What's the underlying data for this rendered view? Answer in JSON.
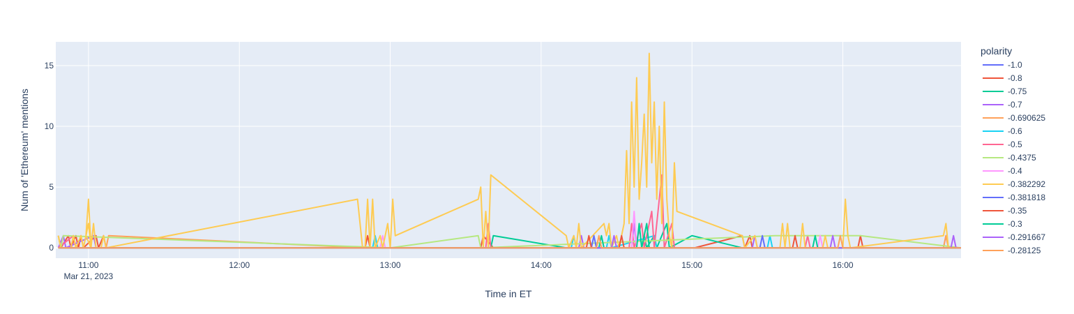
{
  "chart_data": {
    "type": "line",
    "title": "",
    "xlabel": "Time in ET",
    "ylabel": "Num of 'Ethereum' mentions",
    "date_label": "Mar 21, 2023",
    "xlim": [
      "10:47",
      "16:47"
    ],
    "ylim": [
      -0.85,
      16.95
    ],
    "x_ticks": [
      "11:00",
      "12:00",
      "13:00",
      "14:00",
      "15:00",
      "16:00"
    ],
    "y_ticks": [
      0,
      5,
      10,
      15
    ],
    "grid": true,
    "legend_title": "polarity",
    "legend_position": "right",
    "colors": {
      "plot_bg": "#e5ecf6",
      "grid": "#ffffff",
      "text": "#2a3f5f"
    },
    "series": [
      {
        "name": "-1.0",
        "color": "#636efa",
        "points": [
          [
            "10:48",
            0
          ],
          [
            "16:47",
            0
          ]
        ]
      },
      {
        "name": "-0.8",
        "color": "#ef553b",
        "points": [
          [
            "10:48",
            1
          ],
          [
            "10:49",
            0
          ],
          [
            "10:52",
            1
          ],
          [
            "10:53",
            0
          ],
          [
            "10:55",
            1
          ],
          [
            "10:56",
            0
          ],
          [
            "10:57",
            1
          ],
          [
            "10:58",
            0
          ],
          [
            "11:03",
            1
          ],
          [
            "11:04",
            0
          ],
          [
            "11:06",
            1
          ],
          [
            "11:07",
            0
          ],
          [
            "12:50",
            0
          ],
          [
            "12:51",
            1
          ],
          [
            "12:52",
            0
          ],
          [
            "13:36",
            0
          ],
          [
            "13:37",
            1
          ],
          [
            "13:41",
            0
          ],
          [
            "15:01",
            0
          ],
          [
            "15:20",
            1
          ],
          [
            "15:21",
            0
          ],
          [
            "15:23",
            1
          ],
          [
            "15:24",
            0
          ],
          [
            "16:06",
            0
          ],
          [
            "16:07",
            1
          ],
          [
            "16:08",
            0
          ],
          [
            "16:47",
            0
          ]
        ]
      },
      {
        "name": "-0.75",
        "color": "#00cc96",
        "points": [
          [
            "10:48",
            0
          ],
          [
            "13:40",
            0
          ],
          [
            "13:41",
            1
          ],
          [
            "14:10",
            0
          ],
          [
            "14:40",
            0
          ],
          [
            "14:41",
            1
          ],
          [
            "14:42",
            0
          ],
          [
            "14:45",
            1
          ],
          [
            "14:46",
            0
          ],
          [
            "14:50",
            2
          ],
          [
            "14:51",
            0
          ],
          [
            "15:00",
            1
          ],
          [
            "15:20",
            0
          ],
          [
            "16:47",
            0
          ]
        ]
      },
      {
        "name": "-0.7",
        "color": "#ab63fa",
        "points": [
          [
            "10:48",
            0
          ],
          [
            "10:50",
            1
          ],
          [
            "10:51",
            0
          ],
          [
            "11:02",
            1
          ],
          [
            "11:03",
            0
          ],
          [
            "14:15",
            0
          ],
          [
            "14:16",
            1
          ],
          [
            "14:17",
            0
          ],
          [
            "14:36",
            0
          ],
          [
            "14:37",
            2
          ],
          [
            "14:38",
            0
          ],
          [
            "15:24",
            0
          ],
          [
            "15:25",
            1
          ],
          [
            "15:26",
            0
          ],
          [
            "16:40",
            0
          ],
          [
            "16:41",
            1
          ],
          [
            "16:42",
            0
          ],
          [
            "16:47",
            0
          ]
        ]
      },
      {
        "name": "-0.690625",
        "color": "#ffa15a",
        "points": [
          [
            "10:48",
            0
          ],
          [
            "11:07",
            0
          ],
          [
            "11:08",
            1
          ],
          [
            "12:50",
            0
          ],
          [
            "16:40",
            0
          ],
          [
            "16:41",
            1
          ],
          [
            "16:42",
            0
          ],
          [
            "16:47",
            0
          ]
        ]
      },
      {
        "name": "-0.6",
        "color": "#19d3f3",
        "points": [
          [
            "10:48",
            0
          ],
          [
            "12:53",
            0
          ],
          [
            "12:54",
            1
          ],
          [
            "12:55",
            0
          ],
          [
            "14:12",
            0
          ],
          [
            "14:13",
            1
          ],
          [
            "14:14",
            0
          ],
          [
            "14:26",
            0
          ],
          [
            "14:27",
            1
          ],
          [
            "14:28",
            0
          ],
          [
            "14:45",
            1
          ],
          [
            "14:46",
            0
          ],
          [
            "15:30",
            0
          ],
          [
            "15:31",
            1
          ],
          [
            "15:32",
            0
          ],
          [
            "16:47",
            0
          ]
        ]
      },
      {
        "name": "-0.5",
        "color": "#ff6692",
        "points": [
          [
            "10:48",
            0
          ],
          [
            "10:54",
            1
          ],
          [
            "10:55",
            0
          ],
          [
            "13:38",
            0
          ],
          [
            "13:39",
            2
          ],
          [
            "13:40",
            0
          ],
          [
            "14:35",
            0
          ],
          [
            "14:36",
            2
          ],
          [
            "14:37",
            0
          ],
          [
            "14:40",
            2
          ],
          [
            "14:41",
            0
          ],
          [
            "14:44",
            3
          ],
          [
            "14:45",
            0
          ],
          [
            "14:48",
            6
          ],
          [
            "14:49",
            0
          ],
          [
            "14:52",
            2
          ],
          [
            "14:53",
            0
          ],
          [
            "15:45",
            0
          ],
          [
            "15:46",
            1
          ],
          [
            "15:47",
            0
          ],
          [
            "16:47",
            0
          ]
        ]
      },
      {
        "name": "-0.4375",
        "color": "#b6e880",
        "points": [
          [
            "10:48",
            1
          ],
          [
            "10:49",
            0
          ],
          [
            "10:50",
            1
          ],
          [
            "13:00",
            0
          ],
          [
            "13:35",
            1
          ],
          [
            "13:36",
            0
          ],
          [
            "15:33",
            1
          ],
          [
            "16:07",
            1
          ],
          [
            "16:47",
            0
          ]
        ]
      },
      {
        "name": "-0.4",
        "color": "#ff97ff",
        "points": [
          [
            "10:48",
            0
          ],
          [
            "12:56",
            0
          ],
          [
            "12:57",
            1
          ],
          [
            "12:58",
            0
          ],
          [
            "14:36",
            0
          ],
          [
            "14:37",
            3
          ],
          [
            "14:38",
            0
          ],
          [
            "15:50",
            0
          ],
          [
            "15:51",
            1
          ],
          [
            "15:52",
            0
          ],
          [
            "16:47",
            0
          ]
        ]
      },
      {
        "name": "-0.382292",
        "color": "#fecb52",
        "points": [
          [
            "10:48",
            1
          ],
          [
            "10:49",
            0
          ],
          [
            "10:53",
            0
          ],
          [
            "10:54",
            1
          ],
          [
            "10:55",
            0
          ],
          [
            "10:57",
            1
          ],
          [
            "10:58",
            0
          ],
          [
            "11:00",
            2
          ],
          [
            "11:01",
            0
          ],
          [
            "10:59",
            1
          ],
          [
            "11:00",
            4
          ],
          [
            "11:01",
            0
          ],
          [
            "11:02",
            2
          ],
          [
            "11:03",
            0
          ],
          [
            "11:05",
            0
          ],
          [
            "11:06",
            1
          ],
          [
            "11:07",
            0
          ],
          [
            "12:47",
            4
          ],
          [
            "12:49",
            0
          ],
          [
            "12:50",
            0
          ],
          [
            "12:51",
            4
          ],
          [
            "12:52",
            0
          ],
          [
            "12:53",
            4
          ],
          [
            "12:54",
            0
          ],
          [
            "12:56",
            1
          ],
          [
            "12:57",
            0
          ],
          [
            "12:59",
            2
          ],
          [
            "13:00",
            0
          ],
          [
            "13:01",
            4
          ],
          [
            "13:02",
            1
          ],
          [
            "13:35",
            4
          ],
          [
            "13:36",
            5
          ],
          [
            "13:37",
            0
          ],
          [
            "13:38",
            3
          ],
          [
            "13:39",
            0
          ],
          [
            "13:40",
            6
          ],
          [
            "14:10",
            1
          ],
          [
            "14:11",
            0
          ],
          [
            "14:13",
            1
          ],
          [
            "14:14",
            0
          ],
          [
            "14:15",
            2
          ],
          [
            "14:16",
            0
          ],
          [
            "14:25",
            2
          ],
          [
            "14:26",
            1
          ],
          [
            "14:27",
            2
          ],
          [
            "14:28",
            0
          ],
          [
            "14:30",
            1
          ],
          [
            "14:31",
            0
          ],
          [
            "14:33",
            2
          ],
          [
            "14:34",
            8
          ],
          [
            "14:35",
            2
          ],
          [
            "14:36",
            12
          ],
          [
            "14:37",
            5
          ],
          [
            "14:38",
            14
          ],
          [
            "14:39",
            4
          ],
          [
            "14:40",
            7
          ],
          [
            "14:41",
            11
          ],
          [
            "14:42",
            5
          ],
          [
            "14:43",
            16
          ],
          [
            "14:44",
            7
          ],
          [
            "14:45",
            12
          ],
          [
            "14:46",
            4
          ],
          [
            "14:47",
            10
          ],
          [
            "14:48",
            2
          ],
          [
            "14:49",
            12
          ],
          [
            "14:50",
            4
          ],
          [
            "14:51",
            1
          ],
          [
            "14:52",
            0
          ],
          [
            "14:53",
            7
          ],
          [
            "14:54",
            3
          ],
          [
            "15:20",
            1
          ],
          [
            "15:21",
            0
          ],
          [
            "15:25",
            1
          ],
          [
            "15:26",
            0
          ],
          [
            "15:35",
            0
          ],
          [
            "15:36",
            2
          ],
          [
            "15:37",
            0
          ],
          [
            "15:38",
            2
          ],
          [
            "15:39",
            0
          ],
          [
            "15:43",
            0
          ],
          [
            "15:44",
            2
          ],
          [
            "15:45",
            0
          ],
          [
            "15:52",
            0
          ],
          [
            "15:53",
            1
          ],
          [
            "15:54",
            0
          ],
          [
            "16:00",
            0
          ],
          [
            "16:01",
            4
          ],
          [
            "16:02",
            1
          ],
          [
            "16:03",
            0
          ],
          [
            "16:40",
            1
          ],
          [
            "16:41",
            2
          ],
          [
            "16:42",
            0
          ],
          [
            "16:47",
            0
          ]
        ]
      },
      {
        "name": "-0.381818",
        "color": "#636efa",
        "points": [
          [
            "10:48",
            0
          ],
          [
            "14:20",
            0
          ],
          [
            "14:21",
            1
          ],
          [
            "14:22",
            0
          ],
          [
            "15:27",
            0
          ],
          [
            "15:28",
            1
          ],
          [
            "15:29",
            0
          ],
          [
            "16:47",
            0
          ]
        ]
      },
      {
        "name": "-0.35",
        "color": "#ef553b",
        "points": [
          [
            "10:48",
            0
          ],
          [
            "14:18",
            0
          ],
          [
            "14:19",
            1
          ],
          [
            "14:20",
            0
          ],
          [
            "14:31",
            0
          ],
          [
            "14:32",
            1
          ],
          [
            "14:33",
            0
          ],
          [
            "15:40",
            0
          ],
          [
            "15:41",
            1
          ],
          [
            "15:42",
            0
          ],
          [
            "16:47",
            0
          ]
        ]
      },
      {
        "name": "-0.3",
        "color": "#00cc96",
        "points": [
          [
            "10:48",
            0
          ],
          [
            "14:23",
            0
          ],
          [
            "14:24",
            1
          ],
          [
            "14:25",
            0
          ],
          [
            "14:38",
            0
          ],
          [
            "14:39",
            2
          ],
          [
            "14:40",
            0
          ],
          [
            "14:42",
            2
          ],
          [
            "14:43",
            0
          ],
          [
            "15:48",
            0
          ],
          [
            "15:49",
            1
          ],
          [
            "15:50",
            0
          ],
          [
            "16:47",
            0
          ]
        ]
      },
      {
        "name": "-0.291667",
        "color": "#ab63fa",
        "points": [
          [
            "10:48",
            0
          ],
          [
            "14:28",
            0
          ],
          [
            "14:29",
            1
          ],
          [
            "14:30",
            0
          ],
          [
            "15:55",
            0
          ],
          [
            "15:56",
            1
          ],
          [
            "15:57",
            0
          ],
          [
            "16:43",
            0
          ],
          [
            "16:44",
            1
          ],
          [
            "16:45",
            0
          ],
          [
            "16:47",
            0
          ]
        ]
      },
      {
        "name": "-0.28125",
        "color": "#ffa15a",
        "points": [
          [
            "10:48",
            0
          ],
          [
            "14:22",
            0
          ],
          [
            "14:23",
            1
          ],
          [
            "14:24",
            0
          ],
          [
            "15:58",
            0
          ],
          [
            "15:59",
            1
          ],
          [
            "16:00",
            0
          ],
          [
            "16:47",
            0
          ]
        ]
      }
    ]
  }
}
